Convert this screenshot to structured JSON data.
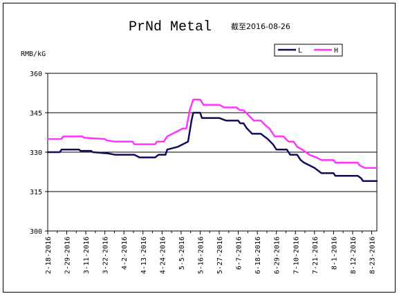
{
  "chart_data": {
    "type": "line",
    "title": "PrNd Metal",
    "subtitle": "截至2016-08-26",
    "ylabel": "RMB/kG",
    "xlabel": "",
    "ylim": [
      300,
      360
    ],
    "yticks": [
      300,
      315,
      330,
      345,
      360
    ],
    "grid": "horizontal",
    "legend_position": "top-right",
    "x_tick_labels": [
      "2-18-2016",
      "2-29-2016",
      "3-11-2016",
      "3-22-2016",
      "4-2-2016",
      "4-13-2016",
      "4-24-2016",
      "5-5-2016",
      "5-16-2016",
      "5-27-2016",
      "6-7-2016",
      "6-18-2016",
      "6-29-2016",
      "7-10-2016",
      "7-21-2016",
      "8-1-2016",
      "8-12-2016",
      "8-23-2016"
    ],
    "x_start": "2016-02-18",
    "x_end": "2016-08-26",
    "series": [
      {
        "name": "L",
        "color": "#0d0d5c",
        "points": [
          [
            "2016-02-18",
            330
          ],
          [
            "2016-02-25",
            330
          ],
          [
            "2016-02-26",
            331
          ],
          [
            "2016-03-07",
            331
          ],
          [
            "2016-03-08",
            330.5
          ],
          [
            "2016-03-14",
            330.5
          ],
          [
            "2016-03-15",
            330
          ],
          [
            "2016-03-24",
            329.5
          ],
          [
            "2016-03-28",
            329
          ],
          [
            "2016-04-08",
            329
          ],
          [
            "2016-04-11",
            328
          ],
          [
            "2016-04-20",
            328
          ],
          [
            "2016-04-22",
            329
          ],
          [
            "2016-04-26",
            329
          ],
          [
            "2016-04-27",
            331
          ],
          [
            "2016-05-03",
            332
          ],
          [
            "2016-05-06",
            333
          ],
          [
            "2016-05-09",
            334
          ],
          [
            "2016-05-10",
            338
          ],
          [
            "2016-05-11",
            342
          ],
          [
            "2016-05-12",
            345
          ],
          [
            "2016-05-16",
            345
          ],
          [
            "2016-05-17",
            343
          ],
          [
            "2016-05-27",
            343
          ],
          [
            "2016-05-31",
            342
          ],
          [
            "2016-06-07",
            342
          ],
          [
            "2016-06-08",
            341
          ],
          [
            "2016-06-10",
            341
          ],
          [
            "2016-06-12",
            339
          ],
          [
            "2016-06-15",
            337
          ],
          [
            "2016-06-20",
            337
          ],
          [
            "2016-06-22",
            336
          ],
          [
            "2016-06-24",
            335
          ],
          [
            "2016-06-27",
            333
          ],
          [
            "2016-06-29",
            331
          ],
          [
            "2016-07-05",
            331
          ],
          [
            "2016-07-07",
            329
          ],
          [
            "2016-07-11",
            329
          ],
          [
            "2016-07-13",
            327
          ],
          [
            "2016-07-15",
            326
          ],
          [
            "2016-07-18",
            325
          ],
          [
            "2016-07-21",
            324
          ],
          [
            "2016-07-25",
            322
          ],
          [
            "2016-08-01",
            322
          ],
          [
            "2016-08-02",
            321
          ],
          [
            "2016-08-15",
            321
          ],
          [
            "2016-08-17",
            320
          ],
          [
            "2016-08-18",
            319
          ],
          [
            "2016-08-26",
            319
          ]
        ]
      },
      {
        "name": "H",
        "color": "#ff33ff",
        "points": [
          [
            "2016-02-18",
            335
          ],
          [
            "2016-02-26",
            335
          ],
          [
            "2016-02-27",
            336
          ],
          [
            "2016-03-09",
            336
          ],
          [
            "2016-03-10",
            335.5
          ],
          [
            "2016-03-22",
            335
          ],
          [
            "2016-03-23",
            334.5
          ],
          [
            "2016-03-28",
            334
          ],
          [
            "2016-04-07",
            334
          ],
          [
            "2016-04-08",
            333
          ],
          [
            "2016-04-20",
            333
          ],
          [
            "2016-04-21",
            334
          ],
          [
            "2016-04-25",
            334
          ],
          [
            "2016-04-27",
            336
          ],
          [
            "2016-04-30",
            337
          ],
          [
            "2016-05-03",
            338
          ],
          [
            "2016-05-06",
            339
          ],
          [
            "2016-05-08",
            339
          ],
          [
            "2016-05-10",
            346
          ],
          [
            "2016-05-12",
            350
          ],
          [
            "2016-05-16",
            350
          ],
          [
            "2016-05-18",
            348
          ],
          [
            "2016-05-27",
            348
          ],
          [
            "2016-05-30",
            347
          ],
          [
            "2016-06-06",
            347
          ],
          [
            "2016-06-08",
            346
          ],
          [
            "2016-06-10",
            346
          ],
          [
            "2016-06-13",
            344
          ],
          [
            "2016-06-16",
            342
          ],
          [
            "2016-06-20",
            342
          ],
          [
            "2016-06-23",
            340
          ],
          [
            "2016-06-25",
            339
          ],
          [
            "2016-06-28",
            336
          ],
          [
            "2016-07-03",
            336
          ],
          [
            "2016-07-06",
            334
          ],
          [
            "2016-07-09",
            334
          ],
          [
            "2016-07-11",
            332
          ],
          [
            "2016-07-14",
            331
          ],
          [
            "2016-07-18",
            329
          ],
          [
            "2016-07-22",
            328
          ],
          [
            "2016-07-25",
            327
          ],
          [
            "2016-08-01",
            327
          ],
          [
            "2016-08-02",
            326
          ],
          [
            "2016-08-15",
            326
          ],
          [
            "2016-08-16",
            325
          ],
          [
            "2016-08-19",
            324
          ],
          [
            "2016-08-26",
            324
          ]
        ]
      }
    ]
  }
}
